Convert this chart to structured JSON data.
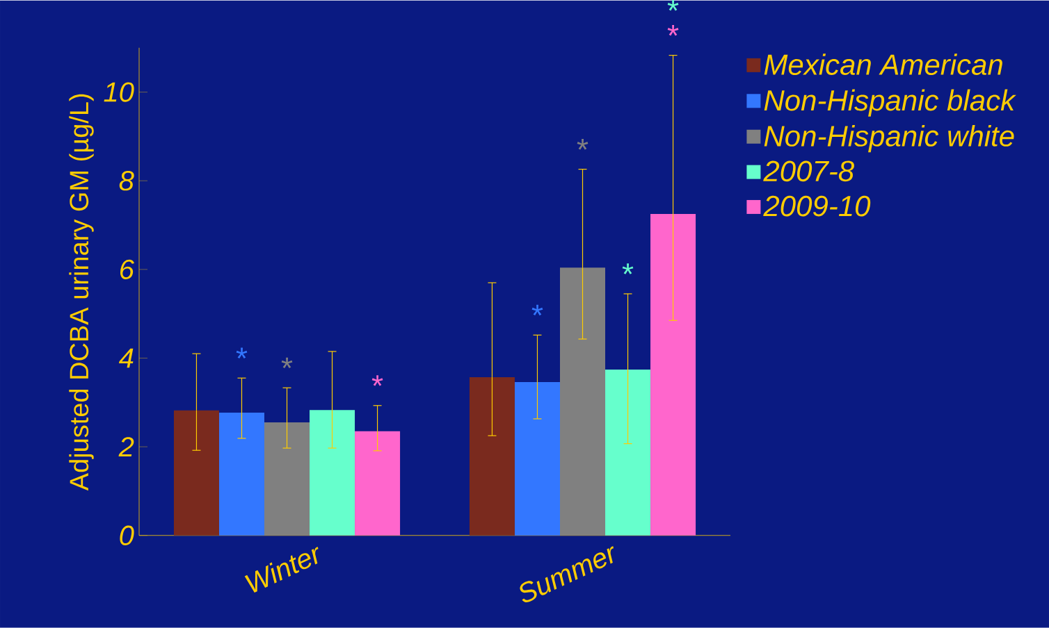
{
  "chart_data": {
    "type": "bar",
    "ylabel": "Adjusted DCBA urinary GM (µg/L)",
    "categories": [
      "Winter",
      "Summer"
    ],
    "series": [
      {
        "name": "Mexican American",
        "color": "#7a2a1e",
        "values": [
          2.82,
          3.57
        ],
        "errors": [
          [
            1.92,
            4.1
          ],
          [
            2.25,
            5.7
          ]
        ]
      },
      {
        "name": "Non-Hispanic black",
        "color": "#3377ff",
        "values": [
          2.77,
          3.46
        ],
        "errors": [
          [
            2.19,
            3.55
          ],
          [
            2.63,
            4.52
          ]
        ]
      },
      {
        "name": "Non-Hispanic white",
        "color": "#808080",
        "values": [
          2.55,
          6.04
        ],
        "errors": [
          [
            1.97,
            3.33
          ],
          [
            4.43,
            8.26
          ]
        ]
      },
      {
        "name": "2007-8",
        "color": "#66ffcc",
        "values": [
          2.83,
          3.74
        ],
        "errors": [
          [
            1.97,
            4.15
          ],
          [
            2.07,
            5.45
          ]
        ]
      },
      {
        "name": "2009-10",
        "color": "#ff66cc",
        "values": [
          2.35,
          7.25
        ],
        "errors": [
          [
            1.91,
            2.93
          ],
          [
            4.85,
            10.83
          ]
        ]
      }
    ],
    "ylim": [
      0,
      11
    ],
    "yticks": [
      0,
      2,
      4,
      6,
      8,
      10
    ],
    "legend": "top right",
    "annotations": [
      "*",
      "*",
      "*",
      "*",
      "*",
      "*",
      "*",
      "*"
    ]
  }
}
